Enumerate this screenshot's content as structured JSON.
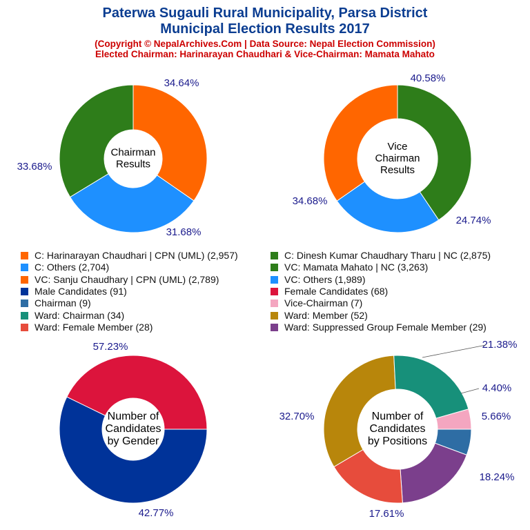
{
  "header": {
    "title_line1": "Paterwa Sugauli Rural Municipality, Parsa District",
    "title_line2": "Municipal Election Results 2017",
    "subtitle_line1": "(Copyright © NepalArchives.Com | Data Source: Nepal Election Commission)",
    "subtitle_line2": "Elected Chairman: Harinarayan Chaudhari & Vice-Chairman: Mamata Mahato"
  },
  "legend": [
    {
      "label": "C: Harinarayan Chaudhari | CPN (UML) (2,957)",
      "color": "#ff6600"
    },
    {
      "label": "C: Dinesh Kumar Chaudhary Tharu | NC (2,875)",
      "color": "#2e7d1a"
    },
    {
      "label": "C: Others (2,704)",
      "color": "#1e90ff"
    },
    {
      "label": "VC: Mamata Mahato | NC (3,263)",
      "color": "#2e7d1a"
    },
    {
      "label": "VC: Sanju Chaudhary | CPN (UML) (2,789)",
      "color": "#ff6600"
    },
    {
      "label": "VC: Others (1,989)",
      "color": "#1e90ff"
    },
    {
      "label": "Male Candidates (91)",
      "color": "#003399"
    },
    {
      "label": "Female Candidates (68)",
      "color": "#dc143c"
    },
    {
      "label": "Chairman (9)",
      "color": "#2e6da4"
    },
    {
      "label": "Vice-Chairman (7)",
      "color": "#f4a6c0"
    },
    {
      "label": "Ward: Chairman (34)",
      "color": "#17907a"
    },
    {
      "label": "Ward: Member (52)",
      "color": "#b8860b"
    },
    {
      "label": "Ward: Female Member (28)",
      "color": "#e74c3c"
    },
    {
      "label": "Ward: Suppressed Group Female Member (29)",
      "color": "#7b3f8c"
    }
  ],
  "chart_data": [
    {
      "type": "pie",
      "center_label": [
        "Chairman",
        "Results"
      ],
      "slices": [
        {
          "name": "C: Harinarayan Chaudhari | CPN (UML)",
          "value": 2957,
          "pct_label": "34.64%",
          "color": "#ff6600"
        },
        {
          "name": "C: Others",
          "value": 2704,
          "pct_label": "31.68%",
          "color": "#1e90ff"
        },
        {
          "name": "C: Dinesh Kumar Chaudhary Tharu | NC",
          "value": 2875,
          "pct_label": "33.68%",
          "color": "#2e7d1a"
        }
      ]
    },
    {
      "type": "pie",
      "center_label": [
        "Vice",
        "Chairman",
        "Results"
      ],
      "slices": [
        {
          "name": "VC: Mamata Mahato | NC",
          "value": 3263,
          "pct_label": "40.58%",
          "color": "#2e7d1a"
        },
        {
          "name": "VC: Others",
          "value": 1989,
          "pct_label": "24.74%",
          "color": "#1e90ff"
        },
        {
          "name": "VC: Sanju Chaudhary | CPN (UML)",
          "value": 2789,
          "pct_label": "34.68%",
          "color": "#ff6600"
        }
      ]
    },
    {
      "type": "pie",
      "center_label": [
        "Number of",
        "Candidates",
        "by Gender"
      ],
      "slices": [
        {
          "name": "Male Candidates",
          "value": 91,
          "pct_label": "57.23%",
          "color": "#003399"
        },
        {
          "name": "Female Candidates",
          "value": 68,
          "pct_label": "42.77%",
          "color": "#dc143c"
        }
      ]
    },
    {
      "type": "pie",
      "center_label": [
        "Number of",
        "Candidates",
        "by Positions"
      ],
      "slices": [
        {
          "name": "Chairman",
          "value": 9,
          "pct_label": "5.66%",
          "color": "#2e6da4"
        },
        {
          "name": "Ward: Suppressed Group Female Member",
          "value": 29,
          "pct_label": "18.24%",
          "color": "#7b3f8c"
        },
        {
          "name": "Ward: Female Member",
          "value": 28,
          "pct_label": "17.61%",
          "color": "#e74c3c"
        },
        {
          "name": "Ward: Member",
          "value": 52,
          "pct_label": "32.70%",
          "color": "#b8860b"
        },
        {
          "name": "Ward: Chairman",
          "value": 34,
          "pct_label": "21.38%",
          "color": "#17907a"
        },
        {
          "name": "Vice-Chairman",
          "value": 7,
          "pct_label": "4.40%",
          "color": "#f4a6c0"
        }
      ]
    }
  ]
}
